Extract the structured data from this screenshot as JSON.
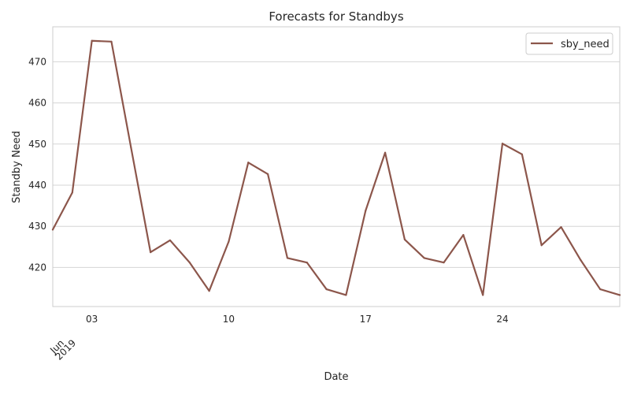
{
  "chart_data": {
    "type": "line",
    "title": "Forecasts for Standbys",
    "xlabel": "Date",
    "ylabel": "Standby Need",
    "x_start": "2019-06-01",
    "x_end": "2019-06-30",
    "ylim": [
      410.5,
      478.5
    ],
    "yticks": [
      420,
      430,
      440,
      450,
      460,
      470
    ],
    "xticks": [
      {
        "date": "2019-06-03",
        "label": "03"
      },
      {
        "date": "2019-06-10",
        "label": "10"
      },
      {
        "date": "2019-06-17",
        "label": "17"
      },
      {
        "date": "2019-06-24",
        "label": "24"
      }
    ],
    "x_month_label": "Jun",
    "x_year_label": "2019",
    "grid": "y",
    "legend_position": "top-right",
    "series": [
      {
        "name": "sby_need",
        "color": "#8c564b",
        "x": [
          "2019-06-01",
          "2019-06-02",
          "2019-06-03",
          "2019-06-04",
          "2019-06-05",
          "2019-06-06",
          "2019-06-07",
          "2019-06-08",
          "2019-06-09",
          "2019-06-10",
          "2019-06-11",
          "2019-06-12",
          "2019-06-13",
          "2019-06-14",
          "2019-06-15",
          "2019-06-16",
          "2019-06-17",
          "2019-06-18",
          "2019-06-19",
          "2019-06-20",
          "2019-06-21",
          "2019-06-22",
          "2019-06-23",
          "2019-06-24",
          "2019-06-25",
          "2019-06-26",
          "2019-06-27",
          "2019-06-28",
          "2019-06-29",
          "2019-06-30"
        ],
        "values": [
          429.2,
          438.2,
          475.1,
          474.9,
          449.2,
          423.7,
          426.6,
          421.2,
          414.3,
          426.3,
          445.5,
          442.7,
          422.3,
          421.2,
          414.7,
          413.3,
          433.8,
          447.9,
          426.8,
          422.3,
          421.2,
          427.9,
          413.3,
          450.1,
          447.5,
          425.4,
          429.8,
          421.8,
          414.7,
          413.3
        ]
      }
    ]
  }
}
